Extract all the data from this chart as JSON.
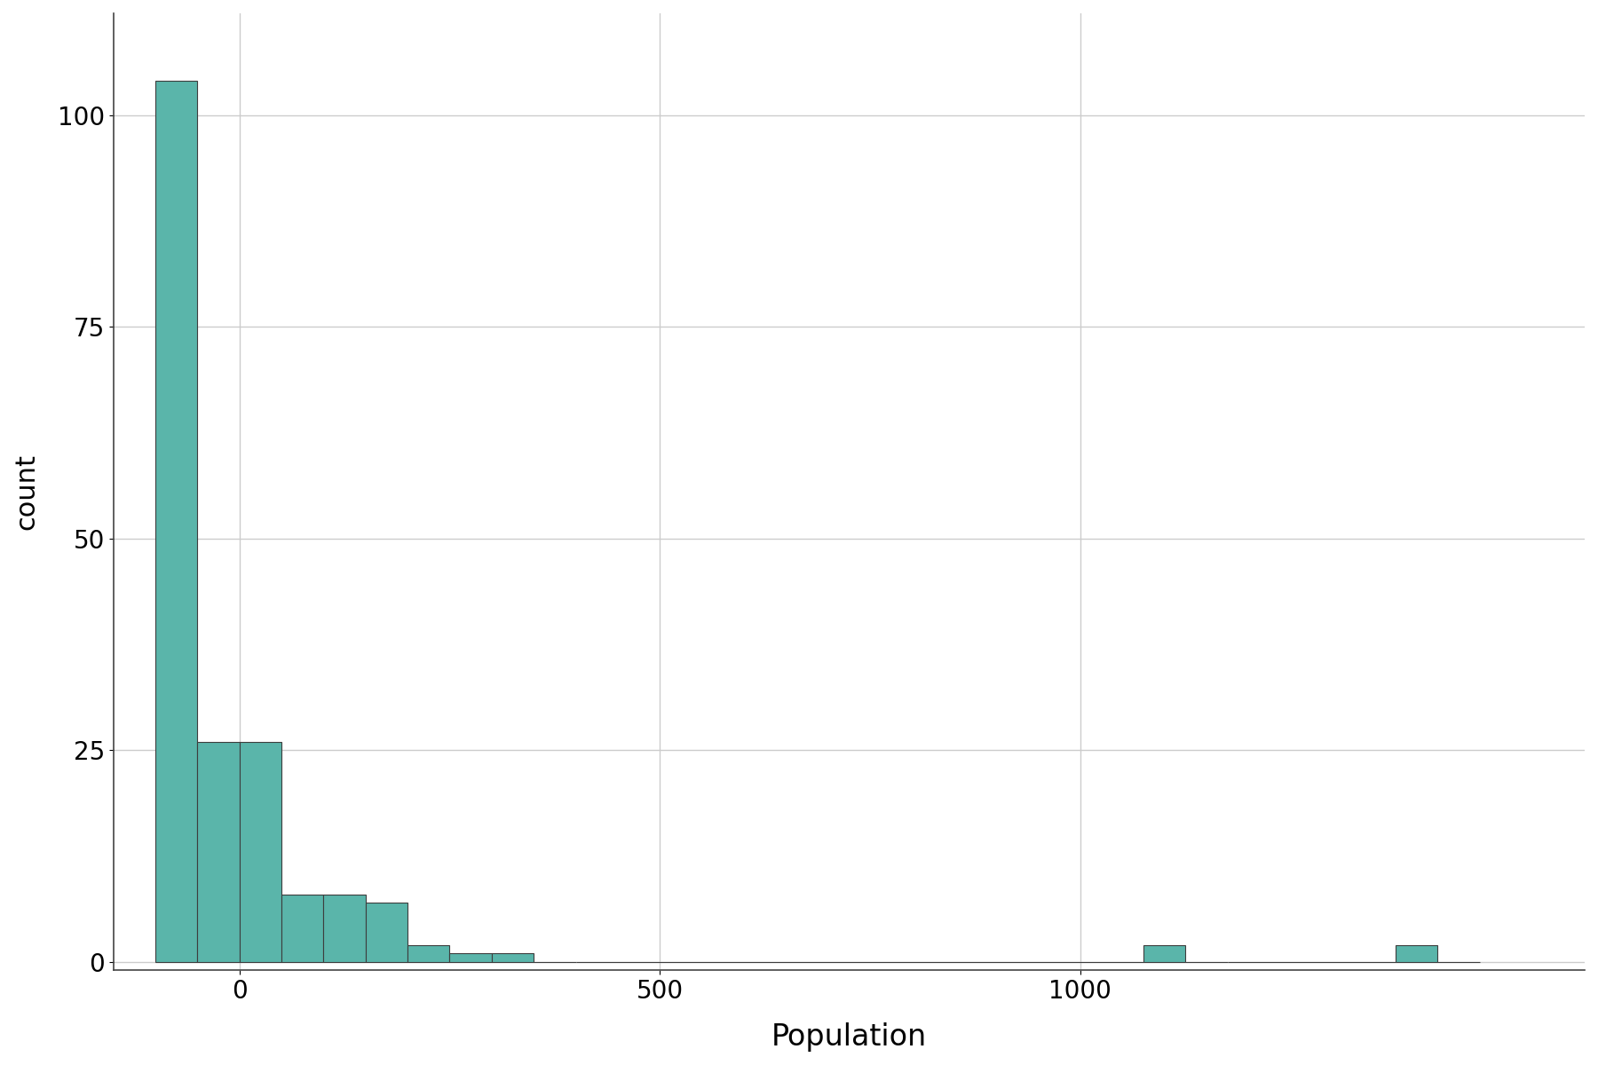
{
  "title": "",
  "xlabel": "Population",
  "ylabel": "count",
  "bar_color": "#5ab5aa",
  "bar_edgecolor": "#3d3d3d",
  "background_color": "#ffffff",
  "grid_color": "#cccccc",
  "xlim": [
    -150,
    1600
  ],
  "ylim": [
    -1,
    112
  ],
  "yticks": [
    0,
    25,
    50,
    75,
    100
  ],
  "xticks": [
    0,
    500,
    1000
  ],
  "xlabel_fontsize": 24,
  "ylabel_fontsize": 22,
  "tick_fontsize": 20,
  "bin_edges": [
    -100,
    -50,
    0,
    50,
    100,
    150,
    200,
    250,
    300,
    350,
    400,
    1075,
    1125,
    1175,
    1375,
    1425,
    1475
  ],
  "bin_counts": [
    104,
    26,
    26,
    8,
    8,
    7,
    2,
    1,
    1,
    0,
    0,
    2,
    0,
    0,
    2,
    0
  ]
}
